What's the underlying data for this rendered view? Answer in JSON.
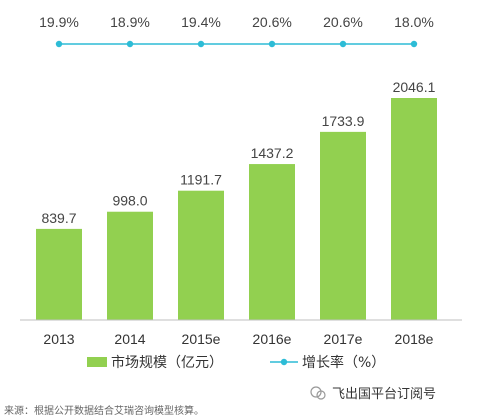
{
  "chart_data": {
    "type": "bar+line",
    "categories": [
      "2013",
      "2014",
      "2015e",
      "2016e",
      "2017e",
      "2018e"
    ],
    "bar_series": {
      "name": "市场规模（亿元）",
      "values": [
        839.7,
        998.0,
        1191.7,
        1437.2,
        1733.9,
        2046.1
      ],
      "labels": [
        "839.7",
        "998.0",
        "1191.7",
        "1437.2",
        "1733.9",
        "2046.1"
      ],
      "color": "#92d050"
    },
    "line_series": {
      "name": "增长率（%）",
      "values": [
        19.9,
        18.9,
        19.4,
        20.6,
        20.6,
        18.0
      ],
      "labels": [
        "19.9%",
        "18.9%",
        "19.4%",
        "20.6%",
        "20.6%",
        "18.0%"
      ],
      "color": "#2dbcd6"
    },
    "legend": {
      "bar_label": "市场规模（亿元）",
      "line_label": "增长率（%）",
      "placement": "bottom"
    },
    "grid": false
  },
  "footer": {
    "source": "来源：根据公开数据结合艾瑞咨询模型核算。",
    "brand": "飞出国平台订阅号"
  }
}
